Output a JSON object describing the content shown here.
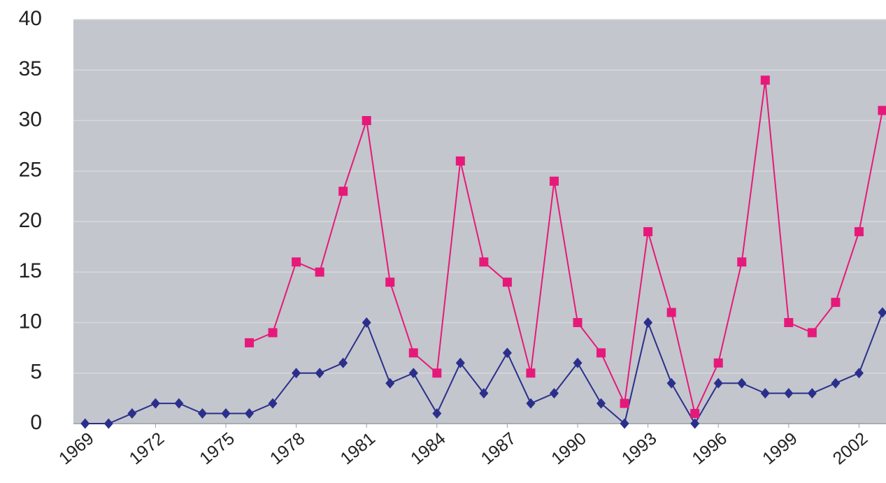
{
  "chart_data": {
    "type": "line",
    "x": [
      1969,
      1970,
      1971,
      1972,
      1973,
      1974,
      1975,
      1976,
      1977,
      1978,
      1979,
      1980,
      1981,
      1982,
      1983,
      1984,
      1985,
      1986,
      1987,
      1988,
      1989,
      1990,
      1991,
      1992,
      1993,
      1994,
      1995,
      1996,
      1997,
      1998,
      1999,
      2000,
      2001,
      2002,
      2003
    ],
    "xlim": [
      1968.5,
      2003.15
    ],
    "xticks": [
      1969,
      1972,
      1975,
      1978,
      1981,
      1984,
      1987,
      1990,
      1993,
      1996,
      1999,
      2002
    ],
    "ylim": [
      0,
      40
    ],
    "yticks": [
      0,
      5,
      10,
      15,
      20,
      25,
      30,
      35,
      40
    ],
    "grid": true,
    "series": [
      {
        "color": "#2b2f8c",
        "marker": "diamond",
        "values": [
          0,
          0,
          1,
          2,
          2,
          1,
          1,
          1,
          2,
          5,
          5,
          6,
          10,
          4,
          5,
          1,
          6,
          3,
          7,
          2,
          3,
          6,
          2,
          0,
          10,
          4,
          0,
          4,
          4,
          3,
          3,
          3,
          4,
          5,
          11
        ]
      },
      {
        "color": "#e6197a",
        "marker": "square",
        "values": [
          null,
          null,
          null,
          null,
          null,
          null,
          null,
          8,
          9,
          16,
          15,
          23,
          30,
          14,
          7,
          5,
          26,
          16,
          14,
          5,
          24,
          10,
          7,
          2,
          19,
          11,
          1,
          6,
          16,
          34,
          10,
          9,
          12,
          19,
          31
        ]
      }
    ]
  }
}
